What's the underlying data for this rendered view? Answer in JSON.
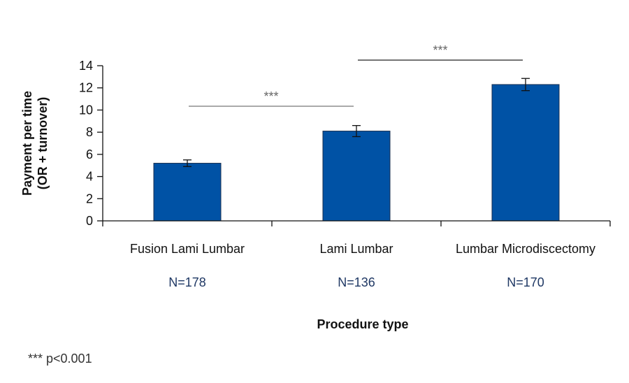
{
  "chart_data": {
    "type": "bar",
    "categories": [
      "Fusion Lami Lumbar",
      "Lami Lumbar",
      "Lumbar Microdiscectomy"
    ],
    "sample_sizes": [
      "N=178",
      "N=136",
      "N=170"
    ],
    "values": [
      5.2,
      8.1,
      12.3
    ],
    "error": [
      0.3,
      0.5,
      0.55
    ],
    "ylim": [
      0,
      14
    ],
    "yticks": [
      0,
      2,
      4,
      6,
      8,
      10,
      12,
      14
    ],
    "ylabel_lines": [
      "Payment per time",
      "(OR + turnover)"
    ],
    "xlabel": "Procedure type",
    "bar_color": "#0052a5",
    "significance": [
      {
        "from": 0,
        "to": 1,
        "label": "***"
      },
      {
        "from": 1,
        "to": 2,
        "label": "***"
      }
    ],
    "footnote": "*** p<0.001",
    "grid": false
  }
}
